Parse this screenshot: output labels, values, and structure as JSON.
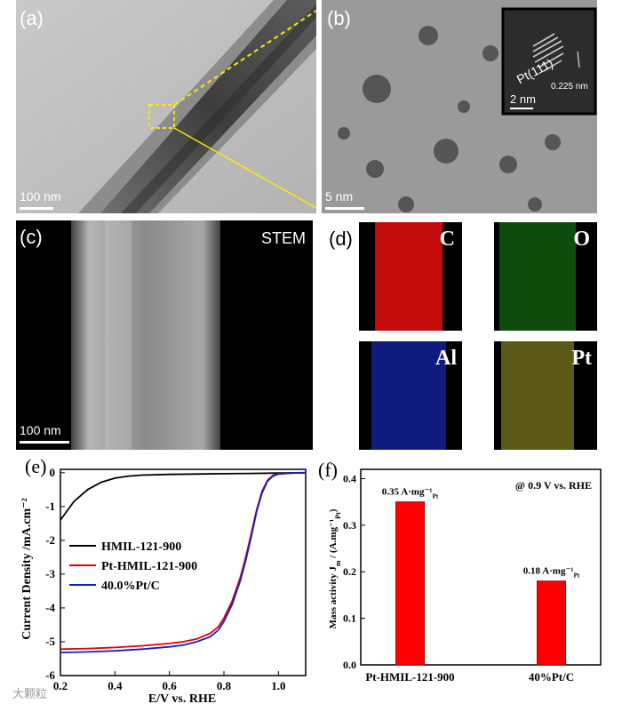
{
  "panel_labels": {
    "a": "(a)",
    "b": "(b)",
    "c": "(c)",
    "d": "(d)",
    "e": "(e)",
    "f": "(f)"
  },
  "scale_bars": {
    "a": "100 nm",
    "b": "5 nm",
    "b_inset": "2 nm",
    "c": "100 nm"
  },
  "inset": {
    "plane": "Pt(111)",
    "spacing": "0.225 nm"
  },
  "stem_label": "STEM",
  "elements": [
    "C",
    "O",
    "Al",
    "Pt"
  ],
  "element_colors": {
    "C": "#e01010",
    "O": "#20a020",
    "Al": "#1a2fd0",
    "Pt": "#c8c030"
  },
  "watermark": "大颗粒",
  "chart_data": [
    {
      "type": "line",
      "panel": "(e)",
      "xlabel": "E/V vs. RHE",
      "ylabel": "Current Density /mA.cm⁻²",
      "xlim": [
        0.2,
        1.1
      ],
      "ylim": [
        -6,
        0.1
      ],
      "xticks": [
        0.2,
        0.4,
        0.6,
        0.8,
        1.0
      ],
      "yticks": [
        0,
        -1,
        -2,
        -3,
        -4,
        -5,
        -6
      ],
      "legend_position": "center-left",
      "series": [
        {
          "name": "HMIL-121-900",
          "color": "#000000",
          "x": [
            0.2,
            0.25,
            0.3,
            0.35,
            0.4,
            0.45,
            0.5,
            0.6,
            0.7,
            0.8,
            0.9,
            1.0,
            1.1
          ],
          "y": [
            -1.4,
            -0.85,
            -0.5,
            -0.28,
            -0.16,
            -0.1,
            -0.07,
            -0.05,
            -0.04,
            -0.03,
            -0.02,
            -0.01,
            0.0
          ]
        },
        {
          "name": "Pt-HMIL-121-900",
          "color": "#e00000",
          "x": [
            0.2,
            0.3,
            0.4,
            0.5,
            0.6,
            0.65,
            0.7,
            0.75,
            0.78,
            0.8,
            0.83,
            0.86,
            0.88,
            0.9,
            0.92,
            0.94,
            0.96,
            0.98,
            1.0,
            1.05,
            1.1
          ],
          "y": [
            -5.22,
            -5.2,
            -5.17,
            -5.12,
            -5.05,
            -5.0,
            -4.92,
            -4.75,
            -4.55,
            -4.3,
            -3.8,
            -3.1,
            -2.5,
            -1.8,
            -1.1,
            -0.55,
            -0.22,
            -0.08,
            -0.03,
            -0.01,
            0.0
          ]
        },
        {
          "name": "40.0%Pt/C",
          "color": "#1020c0",
          "x": [
            0.2,
            0.3,
            0.4,
            0.5,
            0.6,
            0.65,
            0.7,
            0.75,
            0.78,
            0.8,
            0.83,
            0.86,
            0.88,
            0.9,
            0.92,
            0.94,
            0.96,
            0.98,
            1.0,
            1.05,
            1.1
          ],
          "y": [
            -5.32,
            -5.3,
            -5.27,
            -5.22,
            -5.15,
            -5.1,
            -5.0,
            -4.85,
            -4.65,
            -4.4,
            -3.9,
            -3.2,
            -2.6,
            -1.9,
            -1.15,
            -0.6,
            -0.25,
            -0.1,
            -0.04,
            -0.01,
            0.0
          ]
        }
      ]
    },
    {
      "type": "bar",
      "panel": "(f)",
      "categories": [
        "Pt-HMIL-121-900",
        "40%Pt/C"
      ],
      "values": [
        0.35,
        0.18
      ],
      "bar_labels": [
        "0.35 A·mg⁻¹",
        "0.18 A·mg⁻¹"
      ],
      "bar_label_subscript": "Pt",
      "annotation": "@ 0.9 V vs. RHE",
      "ylabel": "Mass activity J",
      "ylabel_sub": "m",
      "ylabel_unit": "/ (A.mg⁻¹",
      "ylabel_unit_sub": "Pt",
      "ylabel_close": ")",
      "ylim": [
        0,
        0.42
      ],
      "yticks": [
        0.0,
        0.1,
        0.2,
        0.3,
        0.4
      ],
      "bar_color": "#ff0000"
    }
  ]
}
